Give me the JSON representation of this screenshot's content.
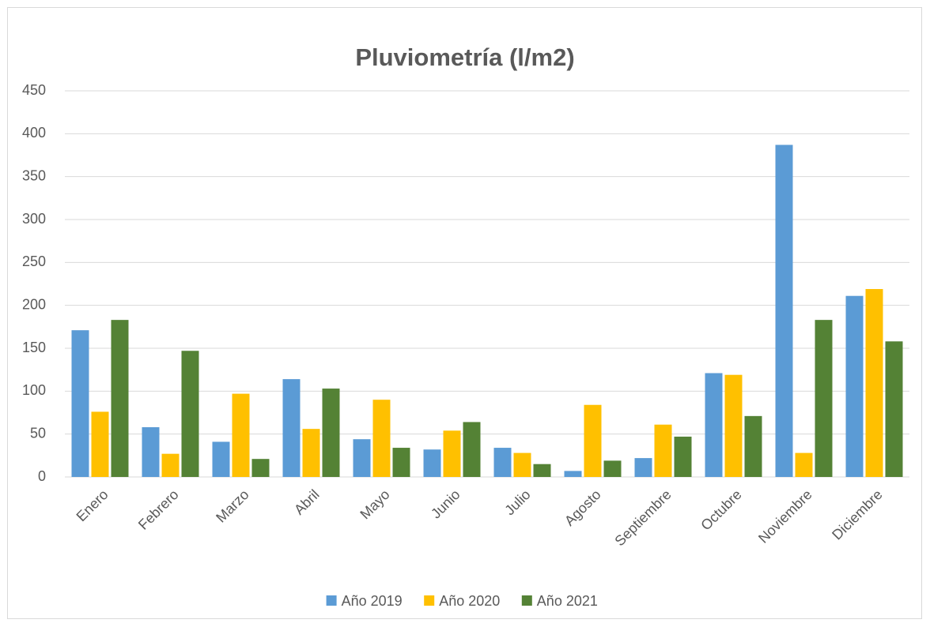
{
  "chart_data": {
    "type": "bar",
    "title": "Pluviometría (l/m2)",
    "categories": [
      "Enero",
      "Febrero",
      "Marzo",
      "Abril",
      "Mayo",
      "Junio",
      "Julio",
      "Agosto",
      "Septiembre",
      "Octubre",
      "Noviembre",
      "Diciembre"
    ],
    "series": [
      {
        "name": "Año 2019",
        "color": "#5b9bd5",
        "values": [
          171,
          58,
          41,
          114,
          44,
          32,
          34,
          7,
          22,
          121,
          387,
          211
        ]
      },
      {
        "name": "Año 2020",
        "color": "#ffc000",
        "values": [
          76,
          27,
          97,
          56,
          90,
          54,
          28,
          84,
          61,
          119,
          28,
          219
        ]
      },
      {
        "name": "Año 2021",
        "color": "#548235",
        "values": [
          183,
          147,
          21,
          103,
          34,
          64,
          15,
          19,
          47,
          71,
          183,
          158
        ]
      }
    ],
    "ylim": [
      0,
      450
    ],
    "yticks": [
      0,
      50,
      100,
      150,
      200,
      250,
      300,
      350,
      400,
      450
    ],
    "grid": true,
    "legend": "bottom"
  }
}
